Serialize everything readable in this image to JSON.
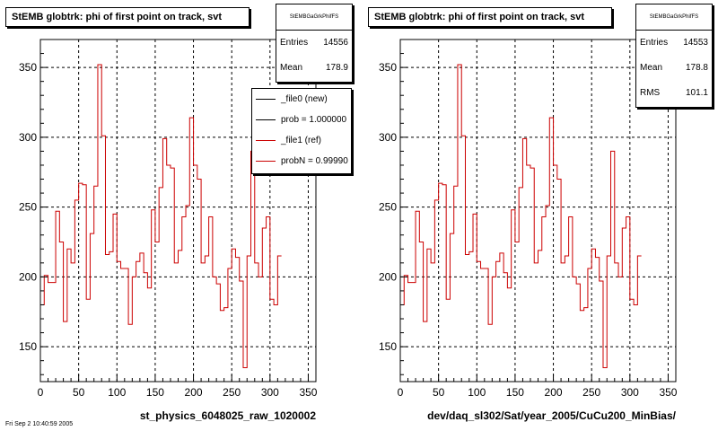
{
  "panels": [
    {
      "title": "StEMB globtrk: phi of first point on track, svt",
      "stats": {
        "name": "StEMBGaGrkPhifFS",
        "entries_label": "Entries",
        "entries": "14556",
        "mean_label": "Mean",
        "mean": "178.9"
      },
      "xlabel": "st_physics_6048025_raw_1020002",
      "legend": [
        "_file0 (new)",
        "prob = 1.000000",
        "_file1 (ref)",
        "probN = 0.99990"
      ]
    },
    {
      "title": "StEMB globtrk: phi of first point on track, svt",
      "stats": {
        "name": "StEMBGaGrkPhifFS",
        "entries_label": "Entries",
        "entries": "14553",
        "mean_label": "Mean",
        "mean": "178.8",
        "rms_label": "RMS",
        "rms": "101.1"
      },
      "xlabel": "dev/daq_sl302/Sat/year_2005/CuCu200_MinBias/"
    }
  ],
  "footer_text": "Fri Sep  2 10:40:59 2005",
  "colors": {
    "hist_line": "#cc0000",
    "legend_new": "#000000",
    "legend_ref": "#cc0000"
  },
  "chart_data": [
    {
      "type": "step",
      "title": "StEMB globtrk: phi of first point on track, svt",
      "xlabel": "st_physics_6048025_raw_1020002",
      "ylabel": "",
      "xlim": [
        0,
        360
      ],
      "ylim": [
        125,
        370
      ],
      "xticks": [
        0,
        50,
        100,
        150,
        200,
        250,
        300,
        350
      ],
      "yticks": [
        150,
        200,
        250,
        300,
        350
      ],
      "grid": true,
      "bin_width": 5,
      "series": [
        {
          "name": "_file1 (ref)",
          "values": [
            180,
            201,
            196,
            196,
            247,
            225,
            168,
            220,
            210,
            255,
            267,
            266,
            184,
            231,
            265,
            352,
            301,
            216,
            218,
            245,
            211,
            206,
            206,
            166,
            200,
            211,
            217,
            203,
            192,
            248,
            225,
            264,
            299,
            280,
            278,
            210,
            219,
            243,
            251,
            314,
            280,
            270,
            210,
            215,
            243,
            200,
            195,
            176,
            178,
            206,
            220,
            214,
            197,
            135,
            215,
            290,
            210,
            200,
            235,
            243,
            184,
            180,
            215
          ]
        }
      ],
      "legend": [
        "_file0 (new)",
        "prob = 1.000000",
        "_file1 (ref)",
        "probN = 0.99990"
      ]
    },
    {
      "type": "step",
      "title": "StEMB globtrk: phi of first point on track, svt",
      "xlabel": "dev/daq_sl302/Sat/year_2005/CuCu200_MinBias/",
      "ylabel": "",
      "xlim": [
        0,
        360
      ],
      "ylim": [
        125,
        370
      ],
      "xticks": [
        0,
        50,
        100,
        150,
        200,
        250,
        300,
        350
      ],
      "yticks": [
        150,
        200,
        250,
        300,
        350
      ],
      "grid": true,
      "bin_width": 5,
      "series": [
        {
          "name": "",
          "values": [
            180,
            201,
            196,
            196,
            247,
            225,
            168,
            220,
            210,
            255,
            267,
            266,
            184,
            231,
            265,
            352,
            301,
            216,
            218,
            245,
            211,
            206,
            206,
            166,
            200,
            211,
            217,
            203,
            192,
            248,
            225,
            264,
            299,
            280,
            278,
            210,
            219,
            243,
            251,
            314,
            280,
            270,
            210,
            215,
            243,
            200,
            195,
            176,
            178,
            206,
            220,
            214,
            197,
            135,
            215,
            290,
            210,
            200,
            235,
            243,
            184,
            180,
            215
          ]
        }
      ]
    }
  ]
}
